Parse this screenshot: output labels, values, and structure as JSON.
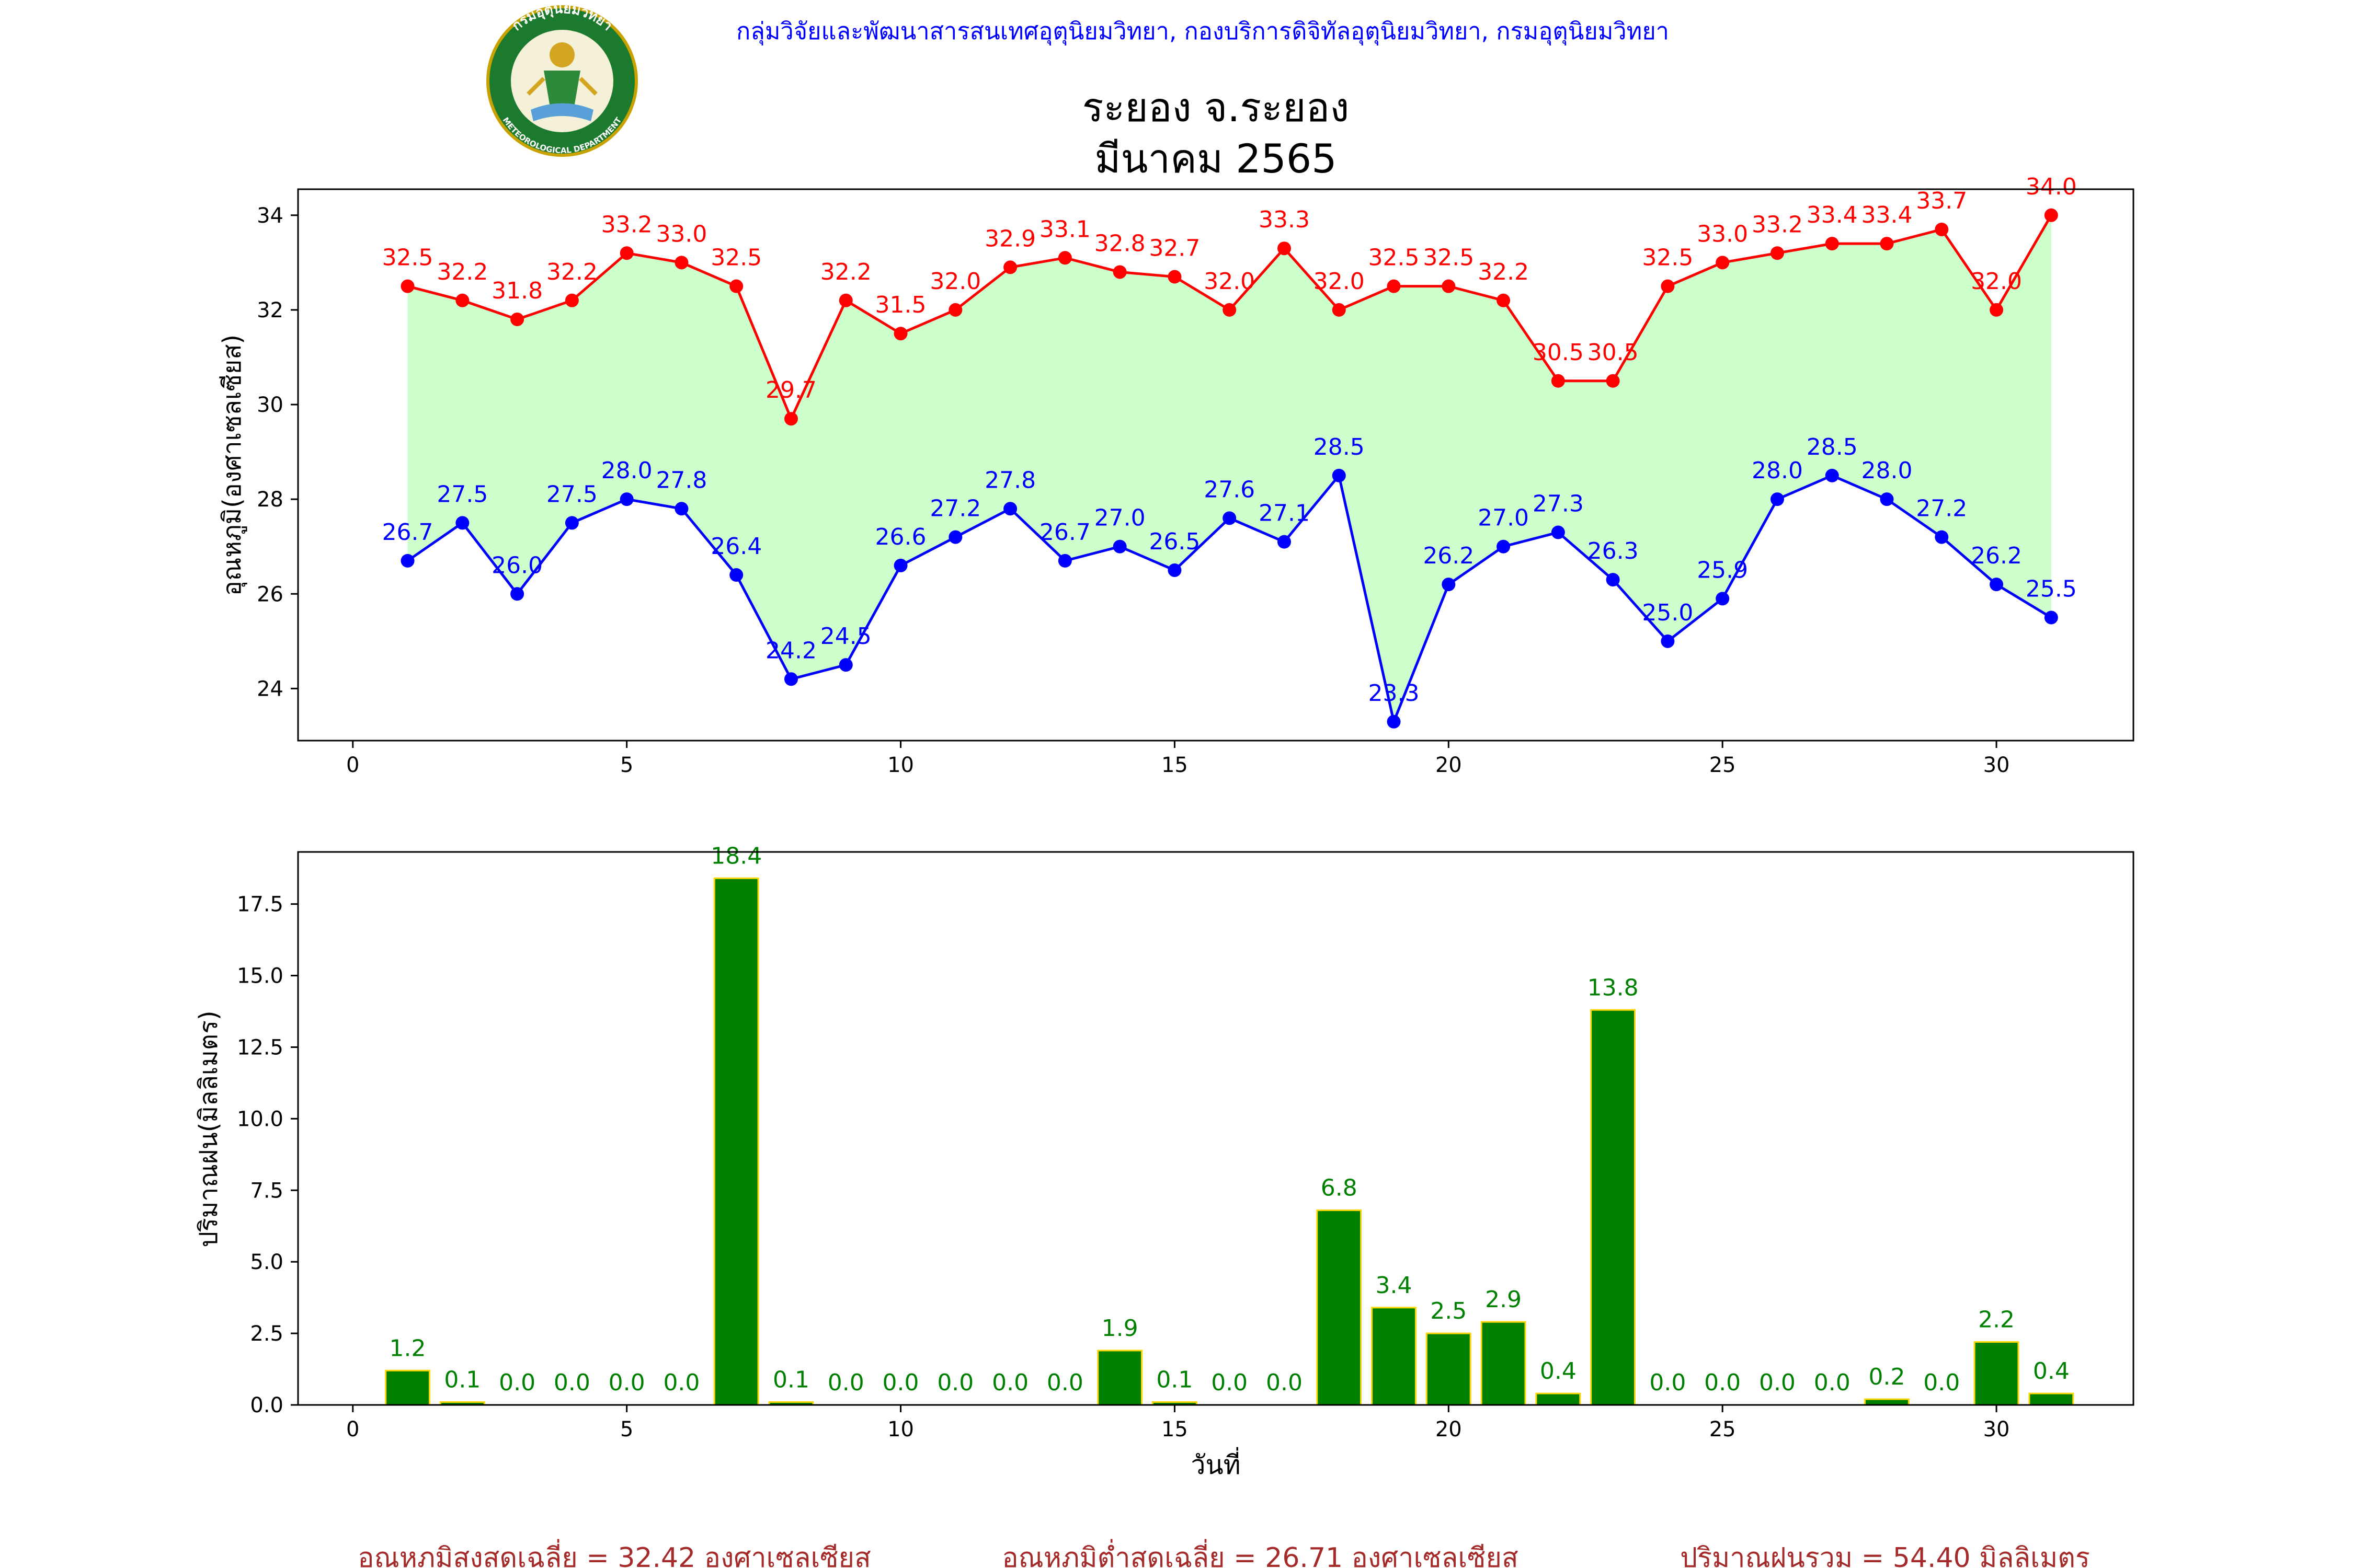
{
  "header": {
    "org_line": "กลุ่มวิจัยและพัฒนาสารสนเทศอุตุนิยมวิทยา, กองบริการดิจิทัลอุตุนิยมวิทยา, กรมอุตุนิยมวิทยา",
    "title_line1": "ระยอง จ.ระยอง",
    "title_line2": "มีนาคม 2565",
    "logo": {
      "top_text": "กรมอุตุนิยมวิทยา",
      "bottom_text": "METEOROLOGICAL DEPARTMENT"
    }
  },
  "colors": {
    "max_line": "#ff0000",
    "min_line": "#0000ff",
    "fill": "#ccffcc",
    "bar": "#008000",
    "bar_edge": "#ffd700",
    "bar_label": "#008000",
    "footer": "#a52a2a",
    "org_line": "#0000ff"
  },
  "chart_data": [
    {
      "type": "line",
      "ylabel": "อุณหภูมิ(องศาเซลเซียส)",
      "xlim": [
        -1,
        32.5
      ],
      "ylim": [
        22.9,
        34.55
      ],
      "xticks": [
        0,
        5,
        10,
        15,
        20,
        25,
        30
      ],
      "yticks": [
        24,
        26,
        28,
        30,
        32,
        34
      ],
      "x": [
        1,
        2,
        3,
        4,
        5,
        6,
        7,
        8,
        9,
        10,
        11,
        12,
        13,
        14,
        15,
        16,
        17,
        18,
        19,
        20,
        21,
        22,
        23,
        24,
        25,
        26,
        27,
        28,
        29,
        30,
        31
      ],
      "series": [
        {
          "key": "max",
          "values": [
            32.5,
            32.2,
            31.8,
            32.2,
            33.2,
            33.0,
            32.5,
            29.7,
            32.2,
            31.5,
            32.0,
            32.9,
            33.1,
            32.8,
            32.7,
            32.0,
            33.3,
            32.0,
            32.5,
            32.5,
            32.2,
            30.5,
            30.5,
            32.5,
            33.0,
            33.2,
            33.4,
            33.4,
            33.7,
            32.0,
            34.0
          ]
        },
        {
          "key": "min",
          "values": [
            26.7,
            27.5,
            26.0,
            27.5,
            28.0,
            27.8,
            26.4,
            24.2,
            24.5,
            26.6,
            27.2,
            27.8,
            26.7,
            27.0,
            26.5,
            27.6,
            27.1,
            28.5,
            23.3,
            26.2,
            27.0,
            27.3,
            26.3,
            25.0,
            25.9,
            28.0,
            28.5,
            28.0,
            27.2,
            26.2,
            25.5
          ]
        }
      ],
      "grid": false
    },
    {
      "type": "bar",
      "xlabel": "วันที่",
      "ylabel": "ปริมาณฝน(มิลลิเมตร)",
      "xlim": [
        -1,
        32.5
      ],
      "ylim": [
        0,
        19.32
      ],
      "xticks": [
        0,
        5,
        10,
        15,
        20,
        25,
        30
      ],
      "yticks": [
        0.0,
        2.5,
        5.0,
        7.5,
        10.0,
        12.5,
        15.0,
        17.5
      ],
      "x": [
        1,
        2,
        3,
        4,
        5,
        6,
        7,
        8,
        9,
        10,
        11,
        12,
        13,
        14,
        15,
        16,
        17,
        18,
        19,
        20,
        21,
        22,
        23,
        24,
        25,
        26,
        27,
        28,
        29,
        30,
        31
      ],
      "values": [
        1.2,
        0.1,
        0.0,
        0.0,
        0.0,
        0.0,
        18.4,
        0.1,
        0.0,
        0.0,
        0.0,
        0.0,
        0.0,
        1.9,
        0.1,
        0.0,
        0.0,
        6.8,
        3.4,
        2.5,
        2.9,
        0.4,
        13.8,
        0.0,
        0.0,
        0.0,
        0.0,
        0.2,
        0.0,
        2.2,
        0.4
      ],
      "grid": false
    }
  ],
  "footer": {
    "avg_max": "อุณหภูมิสูงสุดเฉลี่ย = 32.42 องศาเซลเซียส",
    "avg_min": "อุณหภูมิต่ำสุดเฉลี่ย = 26.71 องศาเซลเซียส",
    "total_rain": "ปริมาณฝนรวม = 54.40 มิลลิเมตร"
  }
}
